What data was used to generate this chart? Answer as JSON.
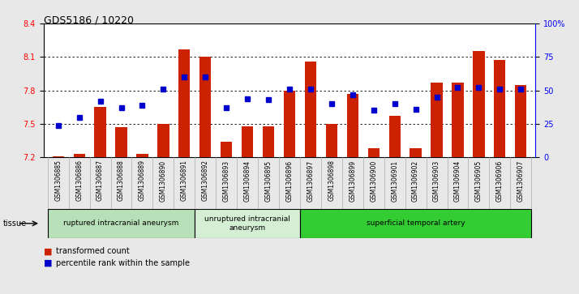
{
  "title": "GDS5186 / 10220",
  "samples": [
    "GSM1306885",
    "GSM1306886",
    "GSM1306887",
    "GSM1306888",
    "GSM1306889",
    "GSM1306890",
    "GSM1306891",
    "GSM1306892",
    "GSM1306893",
    "GSM1306894",
    "GSM1306895",
    "GSM1306896",
    "GSM1306897",
    "GSM1306898",
    "GSM1306899",
    "GSM1306900",
    "GSM1306901",
    "GSM1306902",
    "GSM1306903",
    "GSM1306904",
    "GSM1306905",
    "GSM1306906",
    "GSM1306907"
  ],
  "bar_values": [
    7.21,
    7.23,
    7.65,
    7.47,
    7.23,
    7.5,
    8.17,
    8.1,
    7.34,
    7.48,
    7.48,
    7.8,
    8.06,
    7.5,
    7.77,
    7.28,
    7.57,
    7.28,
    7.87,
    7.87,
    8.15,
    8.07,
    7.85
  ],
  "percentile_values": [
    24,
    30,
    42,
    37,
    39,
    51,
    60,
    60,
    37,
    44,
    43,
    51,
    51,
    40,
    47,
    35,
    40,
    36,
    45,
    52,
    52,
    51,
    51
  ],
  "ylim_left": [
    7.2,
    8.4
  ],
  "ylim_right": [
    0,
    100
  ],
  "yticks_left": [
    7.2,
    7.5,
    7.8,
    8.1,
    8.4
  ],
  "yticks_right": [
    0,
    25,
    50,
    75,
    100
  ],
  "ytick_labels_right": [
    "0",
    "25",
    "50",
    "75",
    "100%"
  ],
  "grid_lines": [
    7.5,
    7.8,
    8.1
  ],
  "bar_color": "#cc2200",
  "dot_color": "#0000cc",
  "bar_bottom": 7.2,
  "group_data": [
    {
      "label": "ruptured intracranial aneurysm",
      "start": 0,
      "end": 7,
      "color": "#b8e0b8"
    },
    {
      "label": "unruptured intracranial\naneurysm",
      "start": 7,
      "end": 12,
      "color": "#d4efd4"
    },
    {
      "label": "superficial temporal artery",
      "start": 12,
      "end": 23,
      "color": "#33cc33"
    }
  ],
  "tissue_label": "tissue",
  "legend_bar_label": "transformed count",
  "legend_dot_label": "percentile rank within the sample",
  "bg_color": "#e8e8e8",
  "plot_bg": "#ffffff",
  "xtick_bg": "#d8d8d8"
}
